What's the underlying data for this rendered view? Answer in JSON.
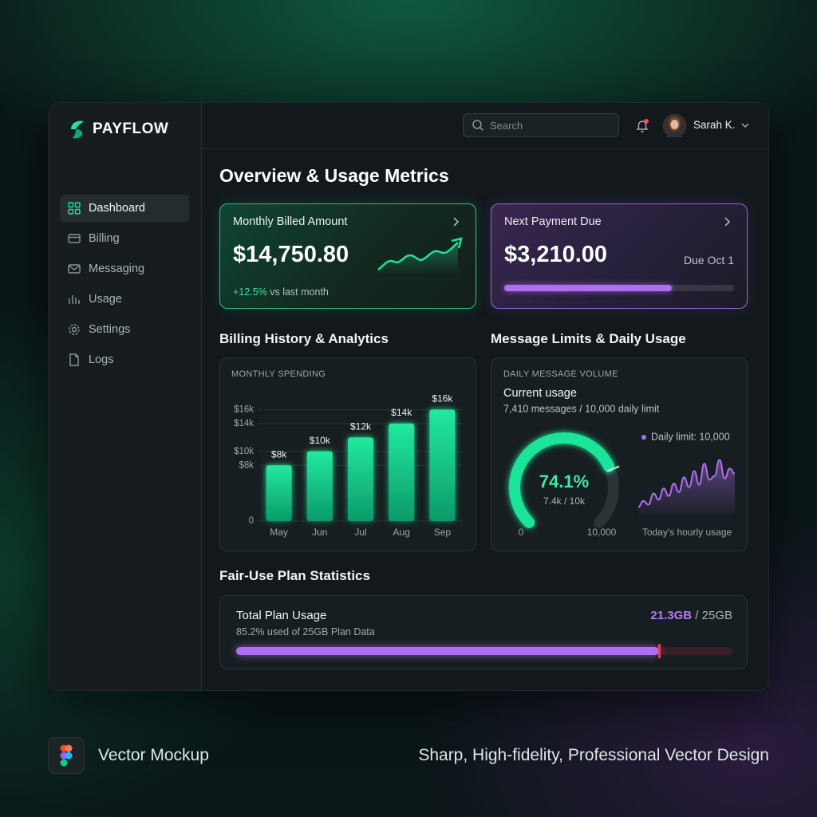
{
  "sidebar": {
    "brand": "PAYFLOW",
    "nav": [
      "Dashboard",
      "Billing",
      "Messaging",
      "Usage",
      "Settings",
      "Logs"
    ]
  },
  "header": {
    "search_placeholder": "Search",
    "user": "Sarah K."
  },
  "page": {
    "title": "Overview & Usage Metrics"
  },
  "billed_card": {
    "title": "Monthly Billed Amount",
    "amount": "$14,750.80",
    "change": "+12.5%",
    "change_text": "vs last month"
  },
  "payment_card": {
    "title": "Next Payment Due",
    "amount": "$3,210.00",
    "due": "Due Oct 1",
    "progress": 0.73
  },
  "billing_section": {
    "heading": "Billing History & Analytics",
    "chart_data": {
      "type": "bar",
      "title": "MONTHLY SPENDING",
      "categories": [
        "May",
        "Jun",
        "Jul",
        "Aug",
        "Sep"
      ],
      "values": [
        8000,
        10000,
        12000,
        14000,
        16000
      ],
      "value_labels": [
        "$8k",
        "$10k",
        "$12k",
        "$14k",
        "$16k"
      ],
      "color": "#19d68f",
      "ylim": [
        0,
        18000
      ],
      "yticks": [
        0,
        {
          "value": 8000,
          "label": "$8k"
        },
        {
          "value": 10000,
          "label": "$10k"
        },
        {
          "value": 14000,
          "label": "$14k"
        },
        {
          "value": 16000,
          "label": "$16k"
        }
      ],
      "grid": true
    }
  },
  "message_section": {
    "heading": "Message Limits & Daily Usage",
    "panel_title": "DAILY MESSAGE VOLUME",
    "subtitle": "Current usage",
    "detail": "7,410 messages / 10,000 daily limit",
    "gauge": {
      "min": 0,
      "max": {
        "value": 10000,
        "label": "10,000"
      },
      "value": 7410,
      "percent_label": "74.1%",
      "detail_label": "7.4k / 10k",
      "color": "#1fe39a"
    },
    "limit_legend": "Daily limit: 10,000",
    "hourly": {
      "type": "line",
      "label": "Today's hourly usage",
      "values": [
        12,
        22,
        16,
        34,
        24,
        42,
        30,
        50,
        36,
        60,
        44,
        70,
        48,
        82,
        56,
        62,
        88,
        58,
        74,
        66
      ],
      "ylim": [
        0,
        100
      ],
      "color": "#b06ef0"
    }
  },
  "fair_use": {
    "heading": "Fair-Use Plan Statistics",
    "title": "Total Plan Usage",
    "used": 21.3,
    "used_label": "21.3GB",
    "total": 25,
    "total_label": "/ 25GB",
    "detail": "85.2% used of 25GB Plan Data"
  },
  "footer": {
    "left": "Vector Mockup",
    "right": "Sharp, High-fidelity, Professional Vector Design"
  }
}
